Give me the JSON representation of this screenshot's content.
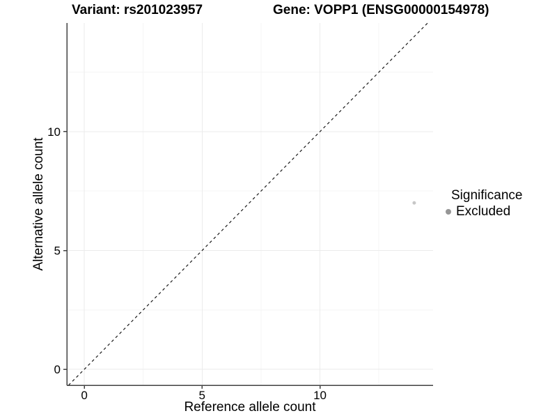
{
  "titles": {
    "variant": "Variant: rs201023957",
    "gene": "Gene: VOPP1 (ENSG00000154978)"
  },
  "chart_data": {
    "type": "scatter",
    "xlabel": "Reference allele count",
    "ylabel": "Alternative allele count",
    "x_ticks": [
      0,
      5,
      10
    ],
    "y_ticks": [
      0,
      5,
      10
    ],
    "x_minor_ticks": [
      2.5,
      7.5,
      12.5
    ],
    "y_minor_ticks": [
      2.5,
      7.5,
      12.5
    ],
    "xlim": [
      -0.74,
      14.8
    ],
    "ylim": [
      -0.67,
      14.57
    ],
    "grid": "major and minor gridlines, very light gray on white",
    "points": [
      {
        "x": 14,
        "y": 7,
        "series": "Excluded"
      }
    ],
    "reference_line": {
      "slope": 1,
      "intercept": 0,
      "style": "dashed"
    },
    "legend": {
      "title": "Significance",
      "position": "right",
      "entries": [
        {
          "label": "Excluded",
          "color": "#969696"
        }
      ]
    }
  },
  "colors": {
    "background": "#ffffff",
    "text": "#000000",
    "axis_line": "#424242",
    "grid_major": "#ebebeb",
    "grid_minor": "#f5f5f5",
    "point": "#c7c7c7",
    "legend_key": "#969696",
    "dashed_line": "#1a1a1a"
  }
}
